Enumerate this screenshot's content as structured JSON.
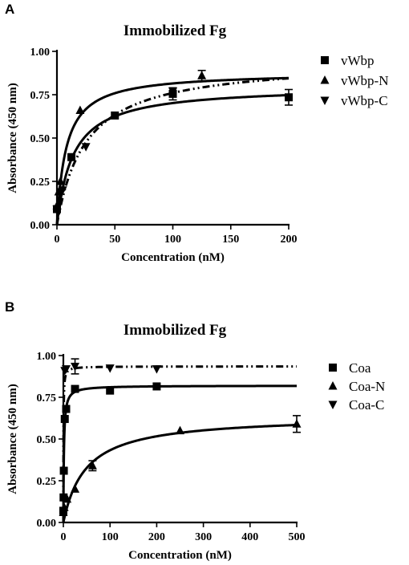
{
  "chart_data": [
    {
      "panel": "A",
      "type": "scatter",
      "title": "Immobilized Fg",
      "xlabel": "Concentration (nM)",
      "ylabel": "Absorbance (450 nm)",
      "xlim": [
        0,
        200
      ],
      "ylim": [
        0,
        1.0
      ],
      "xticks": [
        0,
        50,
        100,
        150,
        200
      ],
      "yticks": [
        0.0,
        0.25,
        0.5,
        0.75,
        1.0
      ],
      "xtick_labels": [
        "0",
        "50",
        "100",
        "150",
        "200"
      ],
      "ytick_labels": [
        "0.00",
        "0.25",
        "0.50",
        "0.75",
        "1.00"
      ],
      "grid": false,
      "legend_position": "right",
      "series": [
        {
          "name": "vWbp",
          "marker": "square",
          "line": "solid",
          "fit": {
            "bmax": 0.8,
            "kd": 14
          },
          "x": [
            0,
            12.5,
            50,
            100,
            200
          ],
          "y": [
            0.09,
            0.39,
            0.63,
            0.755,
            0.735
          ],
          "err": [
            0,
            0,
            0,
            0.035,
            0.045
          ]
        },
        {
          "name": "vWbp-N",
          "marker": "triangle-up",
          "line": "solid",
          "fit": {
            "bmax": 0.88,
            "kd": 8
          },
          "x": [
            0,
            1.5,
            3,
            20,
            125
          ],
          "y": [
            0.11,
            0.19,
            0.25,
            0.66,
            0.86
          ],
          "err": [
            0,
            0,
            0,
            0,
            0.03
          ]
        },
        {
          "name": "vWbp-C",
          "marker": "triangle-down",
          "line": "dash-dot",
          "fit": {
            "bmax": 0.95,
            "kd": 25
          },
          "x": [
            0,
            5,
            25,
            100
          ],
          "y": [
            0.09,
            0.2,
            0.45,
            0.77
          ],
          "err": [
            0,
            0,
            0,
            0
          ]
        }
      ]
    },
    {
      "panel": "B",
      "type": "scatter",
      "title": "Immobilized Fg",
      "xlabel": "Concentration (nM)",
      "ylabel": "Absorbance (450 nm)",
      "xlim": [
        0,
        500
      ],
      "ylim": [
        0,
        1.0
      ],
      "xticks": [
        0,
        100,
        200,
        300,
        400,
        500
      ],
      "yticks": [
        0.0,
        0.25,
        0.5,
        0.75,
        1.0
      ],
      "xtick_labels": [
        "0",
        "100",
        "200",
        "300",
        "400",
        "500"
      ],
      "ytick_labels": [
        "0.00",
        "0.25",
        "0.50",
        "0.75",
        "1.00"
      ],
      "grid": false,
      "legend_position": "right",
      "series": [
        {
          "name": "Coa",
          "marker": "square",
          "line": "solid",
          "fit": {
            "bmax": 0.82,
            "kd": 1.2
          },
          "x": [
            0,
            0.5,
            1,
            3,
            6,
            25,
            100,
            200
          ],
          "y": [
            0.07,
            0.15,
            0.31,
            0.62,
            0.68,
            0.8,
            0.79,
            0.815
          ],
          "err": [
            0,
            0,
            0,
            0,
            0,
            0,
            0,
            0
          ]
        },
        {
          "name": "Coa-N",
          "marker": "triangle-up",
          "line": "solid",
          "fit": {
            "bmax": 0.64,
            "kd": 48
          },
          "x": [
            0,
            2,
            8,
            25,
            62.5,
            250,
            500
          ],
          "y": [
            0.06,
            0.09,
            0.14,
            0.2,
            0.34,
            0.55,
            0.59
          ],
          "err": [
            0,
            0,
            0,
            0,
            0.03,
            0,
            0.05
          ]
        },
        {
          "name": "Coa-C",
          "marker": "triangle-down",
          "line": "dash-dot",
          "fit": {
            "bmax": 0.935,
            "kd": 0.3
          },
          "x": [
            3,
            6,
            25,
            100,
            200
          ],
          "y": [
            0.91,
            0.92,
            0.935,
            0.925,
            0.92
          ],
          "err": [
            0,
            0,
            0.045,
            0,
            0
          ]
        }
      ]
    }
  ]
}
